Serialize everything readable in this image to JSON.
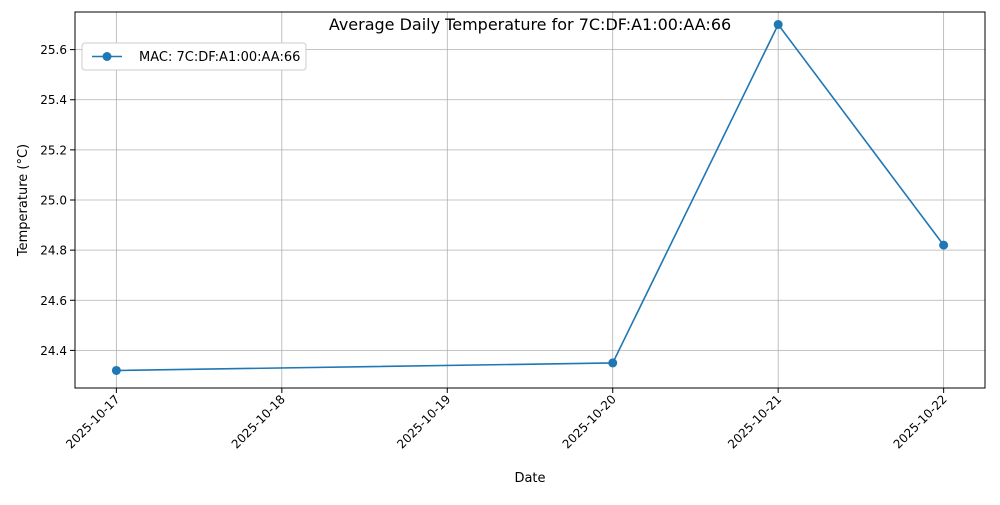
{
  "chart_data": {
    "type": "line",
    "title": "Average Daily Temperature for 7C:DF:A1:00:AA:66",
    "xlabel": "Date",
    "ylabel": "Temperature (°C)",
    "x_ticks": [
      "2025-10-17",
      "2025-10-18",
      "2025-10-19",
      "2025-10-20",
      "2025-10-21",
      "2025-10-22"
    ],
    "y_ticks": [
      "24.4",
      "24.6",
      "24.8",
      "25.0",
      "25.2",
      "25.4",
      "25.6"
    ],
    "xlim": [
      "2025-10-16",
      "2025-10-22"
    ],
    "ylim": [
      24.25,
      25.75
    ],
    "grid": true,
    "legend": "upper-left",
    "series": [
      {
        "name": "MAC: 7C:DF:A1:00:AA:66",
        "color": "#1f77b4",
        "marker": "circle",
        "x": [
          "2025-10-17",
          "2025-10-20",
          "2025-10-21",
          "2025-10-22"
        ],
        "y": [
          24.32,
          24.35,
          25.7,
          24.82
        ]
      }
    ]
  }
}
